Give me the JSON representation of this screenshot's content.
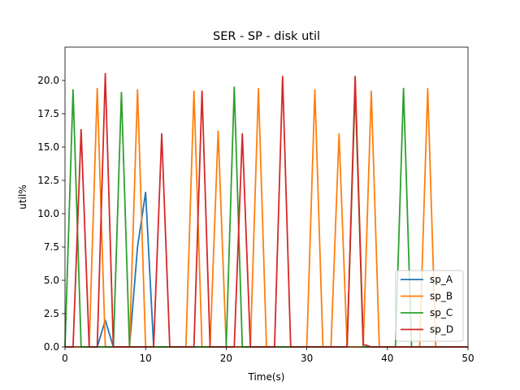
{
  "chart_data": {
    "type": "line",
    "title": "SER - SP - disk util",
    "xlabel": "Time(s)",
    "ylabel": "util%",
    "xlim": [
      0,
      50
    ],
    "ylim": [
      0,
      22.5
    ],
    "xticks": [
      0,
      10,
      20,
      30,
      40,
      50
    ],
    "xtick_labels": [
      "0",
      "10",
      "20",
      "30",
      "40",
      "50"
    ],
    "yticks": [
      0,
      2.5,
      5,
      7.5,
      10,
      12.5,
      15,
      17.5,
      20
    ],
    "ytick_labels": [
      "0.0",
      "2.5",
      "5.0",
      "7.5",
      "10.0",
      "12.5",
      "15.0",
      "17.5",
      "20.0"
    ],
    "grid": false,
    "legend_position": "lower-right",
    "x": [
      0,
      1,
      2,
      3,
      4,
      5,
      6,
      7,
      8,
      9,
      10,
      11,
      12,
      13,
      14,
      15,
      16,
      17,
      18,
      19,
      20,
      21,
      22,
      23,
      24,
      25,
      26,
      27,
      28,
      29,
      30,
      31,
      32,
      33,
      34,
      35,
      36,
      37,
      38,
      39,
      40,
      41,
      42,
      43,
      44,
      45,
      46,
      47,
      48,
      49,
      50
    ],
    "series": [
      {
        "name": "sp_A",
        "color": "#1f77b4",
        "values": [
          0,
          0,
          0,
          0,
          0,
          2,
          0,
          0,
          0,
          7.5,
          11.6,
          0,
          0,
          0,
          0,
          0,
          0,
          0,
          0,
          0,
          0,
          0,
          0,
          0,
          0,
          0,
          0,
          0,
          0,
          0,
          0,
          0,
          0,
          0,
          0,
          0,
          0,
          0,
          0,
          0,
          0,
          0,
          0,
          0,
          0,
          0,
          0,
          0,
          0,
          0,
          0
        ]
      },
      {
        "name": "sp_B",
        "color": "#ff7f0e",
        "values": [
          0,
          0,
          0,
          0,
          19.4,
          0,
          0,
          0,
          0,
          19.3,
          0,
          0,
          0,
          0,
          0,
          0,
          19.2,
          0,
          0,
          16.2,
          0,
          0,
          0,
          0,
          19.4,
          0,
          0,
          0,
          0,
          0,
          0,
          19.3,
          0,
          0,
          16,
          0,
          0,
          0,
          19.2,
          0,
          0,
          0,
          0,
          0,
          0,
          19.4,
          0,
          0,
          0,
          0,
          0
        ]
      },
      {
        "name": "sp_C",
        "color": "#2ca02c",
        "values": [
          0,
          19.3,
          0,
          0,
          0,
          0,
          0,
          19.1,
          0,
          0,
          0,
          0,
          0,
          0,
          0,
          0,
          0,
          0,
          0,
          0,
          0,
          19.5,
          0,
          0,
          0,
          0,
          0,
          0,
          0,
          0,
          0,
          0,
          0,
          0,
          0,
          0,
          19.5,
          0,
          0,
          0,
          0,
          0,
          19.4,
          0,
          0,
          0,
          0,
          0,
          0,
          0,
          0
        ]
      },
      {
        "name": "sp_D",
        "color": "#d62728",
        "values": [
          0,
          0,
          16.3,
          0,
          0,
          20.5,
          0,
          0,
          0,
          0,
          0,
          0,
          16,
          0,
          0,
          0,
          0,
          19.2,
          0,
          0,
          0,
          0,
          16,
          0,
          0,
          0,
          0,
          20.3,
          0,
          0,
          0,
          0,
          0,
          0,
          0,
          0,
          20.3,
          0.2,
          0,
          0,
          0,
          0,
          0,
          0,
          0,
          0,
          0,
          0,
          0,
          0,
          0
        ]
      }
    ]
  }
}
